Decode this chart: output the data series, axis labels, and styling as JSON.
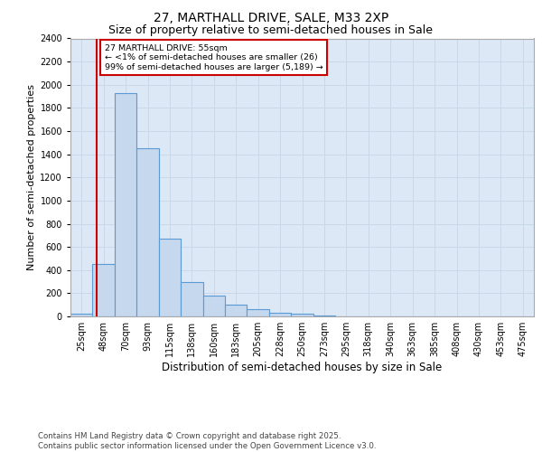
{
  "title1": "27, MARTHALL DRIVE, SALE, M33 2XP",
  "title2": "Size of property relative to semi-detached houses in Sale",
  "xlabel": "Distribution of semi-detached houses by size in Sale",
  "ylabel": "Number of semi-detached properties",
  "bin_labels": [
    "25sqm",
    "48sqm",
    "70sqm",
    "93sqm",
    "115sqm",
    "138sqm",
    "160sqm",
    "183sqm",
    "205sqm",
    "228sqm",
    "250sqm",
    "273sqm",
    "295sqm",
    "318sqm",
    "340sqm",
    "363sqm",
    "385sqm",
    "408sqm",
    "430sqm",
    "453sqm",
    "475sqm"
  ],
  "bar_heights": [
    20,
    450,
    1930,
    1450,
    670,
    300,
    180,
    100,
    65,
    35,
    20,
    5,
    2,
    1,
    1,
    0,
    0,
    0,
    0,
    0,
    0
  ],
  "bar_color": "#c5d8ee",
  "bar_edge_color": "#5b9bd5",
  "bar_linewidth": 0.8,
  "red_line_bin": 1,
  "annotation_title": "27 MARTHALL DRIVE: 55sqm",
  "annotation_line1": "← <1% of semi-detached houses are smaller (26)",
  "annotation_line2": "99% of semi-detached houses are larger (5,189) →",
  "annotation_box_color": "#ffffff",
  "annotation_box_edge": "#cc0000",
  "red_line_color": "#cc0000",
  "ylim": [
    0,
    2400
  ],
  "yticks": [
    0,
    200,
    400,
    600,
    800,
    1000,
    1200,
    1400,
    1600,
    1800,
    2000,
    2200,
    2400
  ],
  "grid_color": "#c8d8e8",
  "background_color": "#dce8f5",
  "fig_background": "#ffffff",
  "footer": "Contains HM Land Registry data © Crown copyright and database right 2025.\nContains public sector information licensed under the Open Government Licence v3.0.",
  "title1_fontsize": 10,
  "title2_fontsize": 9,
  "xlabel_fontsize": 8.5,
  "ylabel_fontsize": 8,
  "tick_fontsize": 7,
  "footer_fontsize": 6.2
}
